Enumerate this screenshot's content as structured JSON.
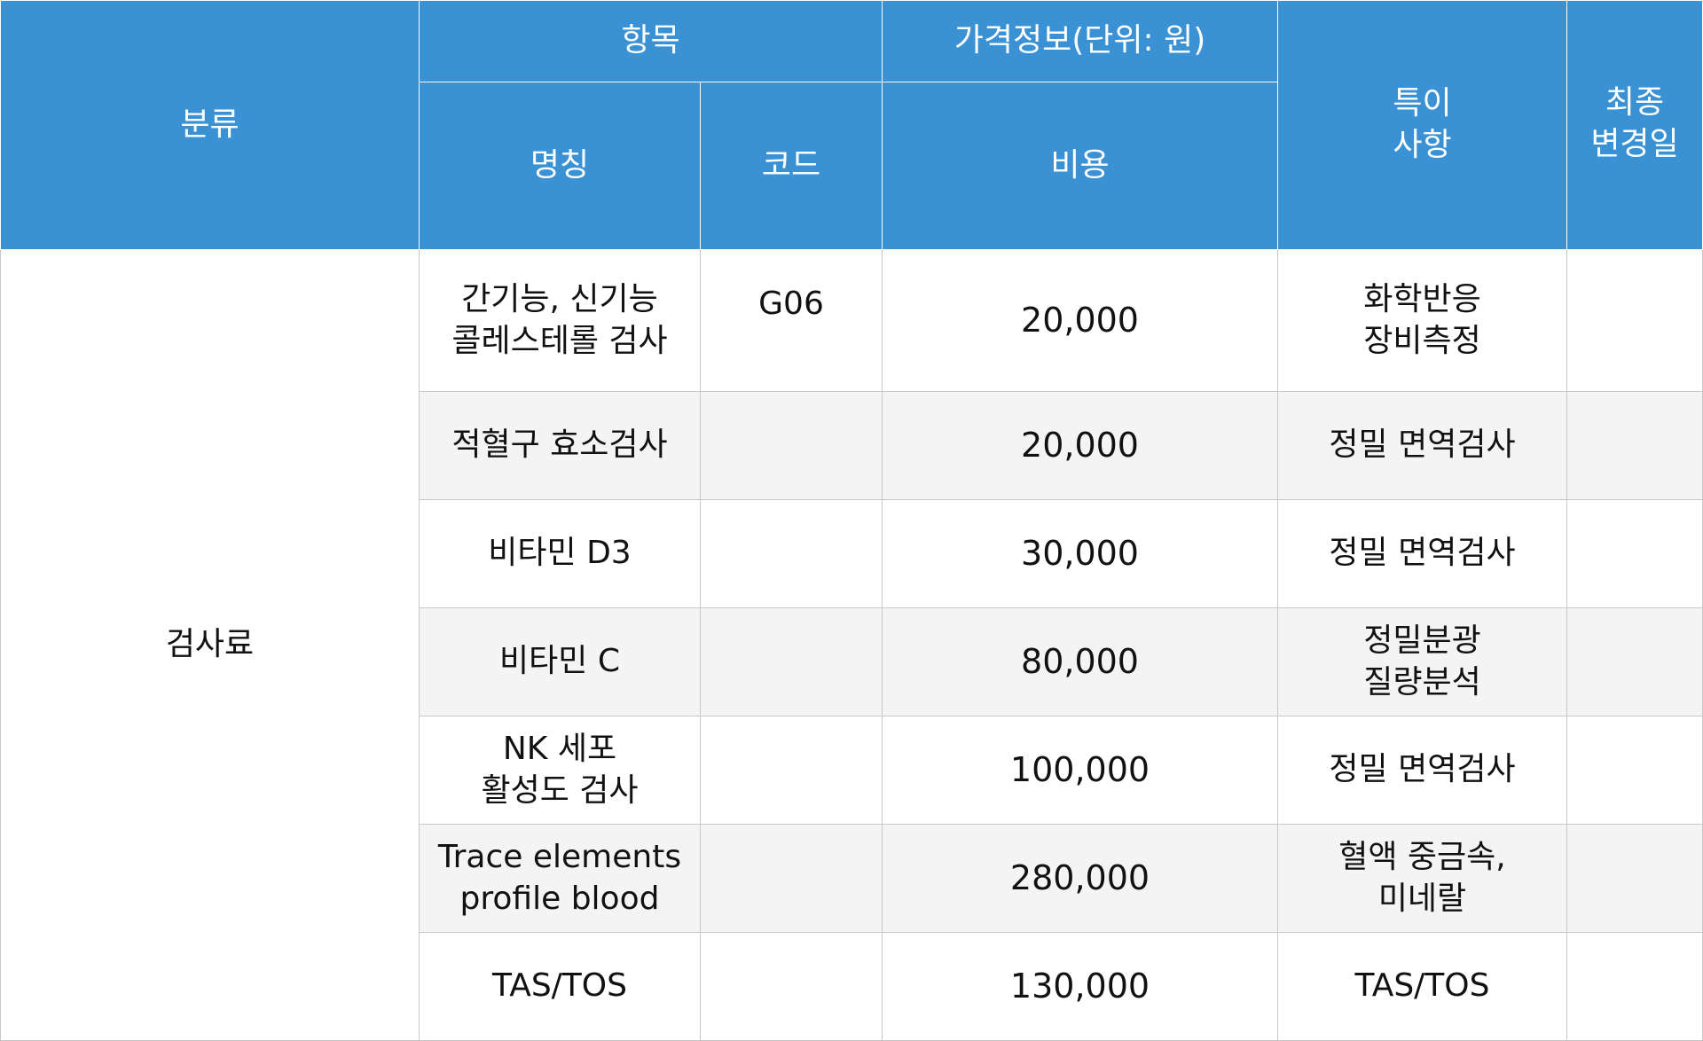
{
  "header": {
    "category": "분류",
    "item": "항목",
    "price_info": "가격정보(단위: 원)",
    "notes": "특이\n사항",
    "last_modified": "최종\n변경일",
    "name": "명칭",
    "code": "코드",
    "cost": "비용"
  },
  "category_label": "검사료",
  "rows": [
    {
      "name": "간기능, 신기능\n콜레스테롤 검사",
      "code": "G06",
      "cost": "20,000",
      "note": "화학반응\n장비측정",
      "date": ""
    },
    {
      "name": "적혈구 효소검사",
      "code": "",
      "cost": "20,000",
      "note": "정밀 면역검사",
      "date": ""
    },
    {
      "name": "비타민 D3",
      "code": "",
      "cost": "30,000",
      "note": "정밀 면역검사",
      "date": ""
    },
    {
      "name": "비타민 C",
      "code": "",
      "cost": "80,000",
      "note": "정밀분광\n질량분석",
      "date": ""
    },
    {
      "name": "NK 세포\n활성도 검사",
      "code": "",
      "cost": "100,000",
      "note": "정밀 면역검사",
      "date": ""
    },
    {
      "name": "Trace elements\nprofile blood",
      "code": "",
      "cost": "280,000",
      "note": "혈액 중금속,\n미네랄",
      "date": ""
    },
    {
      "name": "TAS/TOS",
      "code": "",
      "cost": "130,000",
      "note": "TAS/TOS",
      "date": ""
    }
  ],
  "colors": {
    "header_bg": "#3a91d3",
    "header_text": "#ffffff",
    "zebra_bg": "#f4f4f4",
    "border": "#c8c8c8"
  }
}
